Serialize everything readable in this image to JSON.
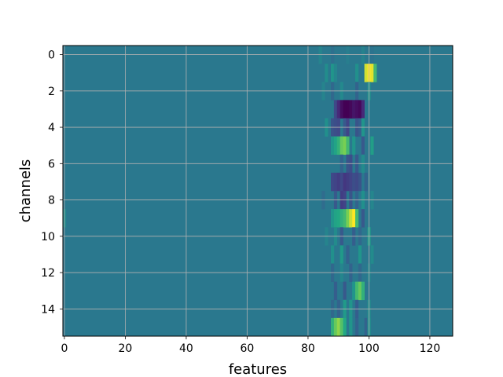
{
  "chart_data": {
    "type": "heatmap",
    "title": "",
    "xlabel": "features",
    "ylabel": "channels",
    "xlim": [
      -0.5,
      127.5
    ],
    "ylim": [
      15.5,
      -0.5
    ],
    "x_ticks": [
      0,
      20,
      40,
      60,
      80,
      100,
      120
    ],
    "y_ticks": [
      0,
      2,
      4,
      6,
      8,
      10,
      12,
      14
    ],
    "grid": true,
    "colormap": "viridis",
    "color_range": [
      -1,
      1
    ],
    "n_features": 128,
    "n_channels": 16,
    "background_value": 0.0,
    "rows": [
      {
        "channel": 0,
        "cells": [
          [
            84,
            0.12
          ],
          [
            88,
            -0.08
          ],
          [
            93,
            0.06
          ],
          [
            98,
            0.1
          ],
          [
            101,
            -0.05
          ]
        ]
      },
      {
        "channel": 1,
        "cells": [
          [
            86,
            0.22
          ],
          [
            88,
            0.3
          ],
          [
            89,
            0.15
          ],
          [
            96,
            0.25
          ],
          [
            99,
            0.92
          ],
          [
            100,
            1.0
          ],
          [
            101,
            0.95
          ],
          [
            102,
            0.6
          ]
        ]
      },
      {
        "channel": 2,
        "cells": [
          [
            85,
            0.12
          ],
          [
            88,
            -0.15
          ],
          [
            91,
            0.18
          ],
          [
            96,
            -0.2
          ],
          [
            100,
            0.25
          ]
        ]
      },
      {
        "channel": 3,
        "cells": [
          [
            89,
            -0.45
          ],
          [
            90,
            -0.7
          ],
          [
            91,
            -0.9
          ],
          [
            92,
            -1.0
          ],
          [
            93,
            -1.0
          ],
          [
            94,
            -0.95
          ],
          [
            95,
            -0.85
          ],
          [
            96,
            -0.9
          ],
          [
            97,
            -0.95
          ],
          [
            98,
            -0.7
          ]
        ]
      },
      {
        "channel": 4,
        "cells": [
          [
            86,
            0.25
          ],
          [
            88,
            -0.35
          ],
          [
            89,
            -0.4
          ],
          [
            90,
            -0.45
          ],
          [
            92,
            -0.3
          ],
          [
            93,
            -0.5
          ],
          [
            96,
            -0.35
          ],
          [
            97,
            -0.25
          ],
          [
            98,
            0.3
          ]
        ]
      },
      {
        "channel": 5,
        "cells": [
          [
            88,
            0.3
          ],
          [
            89,
            0.45
          ],
          [
            90,
            0.55
          ],
          [
            91,
            0.7
          ],
          [
            92,
            0.75
          ],
          [
            93,
            0.6
          ],
          [
            95,
            0.3
          ],
          [
            98,
            -0.3
          ],
          [
            101,
            0.4
          ]
        ]
      },
      {
        "channel": 6,
        "cells": [
          [
            91,
            -0.2
          ],
          [
            93,
            -0.35
          ],
          [
            94,
            -0.4
          ],
          [
            96,
            -0.3
          ],
          [
            98,
            0.2
          ]
        ]
      },
      {
        "channel": 7,
        "cells": [
          [
            88,
            -0.45
          ],
          [
            89,
            -0.5
          ],
          [
            90,
            -0.55
          ],
          [
            91,
            -0.45
          ],
          [
            92,
            -0.6
          ],
          [
            93,
            -0.55
          ],
          [
            94,
            -0.5
          ],
          [
            95,
            -0.4
          ],
          [
            96,
            -0.45
          ],
          [
            97,
            -0.35
          ],
          [
            99,
            -0.2
          ]
        ]
      },
      {
        "channel": 8,
        "cells": [
          [
            85,
            -0.12
          ],
          [
            89,
            -0.3
          ],
          [
            91,
            -0.55
          ],
          [
            92,
            -0.5
          ],
          [
            94,
            -0.35
          ],
          [
            96,
            -0.2
          ],
          [
            98,
            0.25
          ],
          [
            101,
            0.15
          ]
        ]
      },
      {
        "channel": 9,
        "cells": [
          [
            0,
            0.2
          ],
          [
            88,
            0.3
          ],
          [
            89,
            0.45
          ],
          [
            90,
            0.5
          ],
          [
            91,
            0.55
          ],
          [
            92,
            0.6
          ],
          [
            93,
            0.75
          ],
          [
            94,
            0.9
          ],
          [
            95,
            1.0
          ],
          [
            96,
            0.6
          ],
          [
            98,
            -0.3
          ]
        ]
      },
      {
        "channel": 10,
        "cells": [
          [
            86,
            0.12
          ],
          [
            89,
            0.2
          ],
          [
            91,
            -0.3
          ],
          [
            95,
            -0.25
          ],
          [
            97,
            -0.15
          ],
          [
            100,
            0.35
          ]
        ]
      },
      {
        "channel": 11,
        "cells": [
          [
            88,
            0.25
          ],
          [
            91,
            0.35
          ],
          [
            93,
            -0.2
          ],
          [
            97,
            0.3
          ],
          [
            101,
            0.2
          ]
        ]
      },
      {
        "channel": 12,
        "cells": [
          [
            88,
            -0.15
          ],
          [
            91,
            0.15
          ],
          [
            94,
            -0.2
          ],
          [
            97,
            -0.15
          ],
          [
            100,
            0.12
          ]
        ]
      },
      {
        "channel": 13,
        "cells": [
          [
            89,
            -0.25
          ],
          [
            92,
            -0.3
          ],
          [
            95,
            0.3
          ],
          [
            96,
            0.6
          ],
          [
            97,
            0.7
          ],
          [
            98,
            0.55
          ]
        ]
      },
      {
        "channel": 14,
        "cells": [
          [
            88,
            -0.15
          ],
          [
            90,
            -0.2
          ],
          [
            92,
            0.35
          ],
          [
            94,
            0.3
          ],
          [
            96,
            -0.25
          ],
          [
            100,
            0.2
          ]
        ]
      },
      {
        "channel": 15,
        "cells": [
          [
            88,
            0.55
          ],
          [
            89,
            0.7
          ],
          [
            90,
            0.8
          ],
          [
            91,
            0.65
          ],
          [
            92,
            0.5
          ],
          [
            94,
            0.3
          ],
          [
            96,
            -0.2
          ],
          [
            99,
            -0.2
          ],
          [
            100,
            0.25
          ]
        ]
      }
    ]
  }
}
